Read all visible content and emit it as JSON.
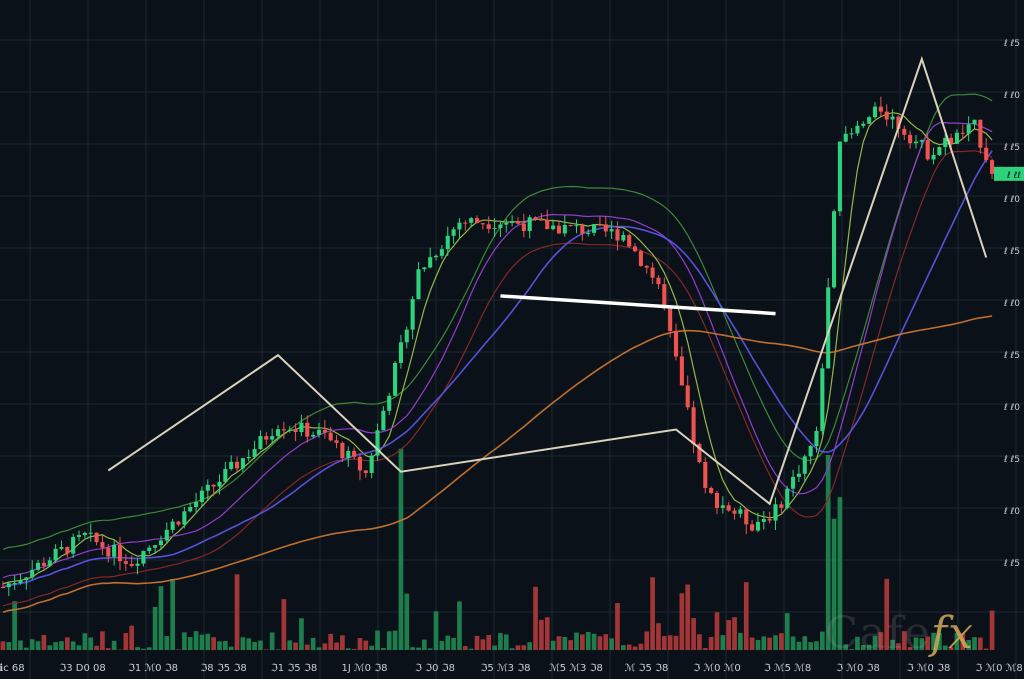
{
  "colors": {
    "background": "#0b1118",
    "grid": "#1c2733",
    "up": "#2fd27c",
    "down": "#ef5350",
    "vol_up": "#1f8a52",
    "vol_down": "#b33a3a",
    "zigzag": "#d9d2bd",
    "ma_fast": "#9bc24a",
    "ma_mid": "#9b3fd6",
    "ma_slow": "#5b55e6",
    "ma_long": "#c9752e",
    "band_upper": "#3f8f3a",
    "band_lower": "#8a2a2a",
    "resistance": "#ffffff",
    "price_tag": "#2fd27c"
  },
  "watermark": {
    "main": "Cafe",
    "accent": "fx"
  },
  "chart_data": {
    "type": "candlestick",
    "xlabel": "",
    "ylabel": "",
    "ylim": [
      0,
      100
    ],
    "grid": true,
    "x_tick_labels": [
      "ℹc 68",
      "ℑ3 D0 08",
      "ℑ1 ℳ0 ℑ8",
      "ℑ8 ℑ5 ℑ8",
      "ℑ1 ℑ5 ℑ8",
      "1J ℳ0 ℑ8",
      "ℑ ℑ0 ℑ8",
      "ℑ5 ℳ3 ℑ8",
      "ℳ5 ℳ3 ℑ8",
      "ℳ ℑ5 ℑ8",
      "ℑ ℳ0 ℳ0",
      "ℑ ℳ5 ℳ8",
      "ℑ ℳ0 ℑ8",
      "ℑ ℳ0 ℑ8",
      "ℑ ℳ0 ℳ8"
    ],
    "y_tick_labels": [
      "ℓ ℓ5",
      "ℓ ℓ0",
      "ℓ ℓ5",
      "ℓ ℓ0",
      "ℓ ℓ5",
      "ℓ ℓ0",
      "ℓ ℓ5",
      "ℓ ℓ0",
      "ℓ ℓ5",
      "ℓ ℓ0",
      "ℓ ℓ5"
    ],
    "current_price_label": "ℓ ℓℓ",
    "candles": [],
    "zigzag": [],
    "resistance_line": [
      [
        85,
        56.2
      ],
      [
        132,
        53.4
      ]
    ],
    "series": []
  }
}
